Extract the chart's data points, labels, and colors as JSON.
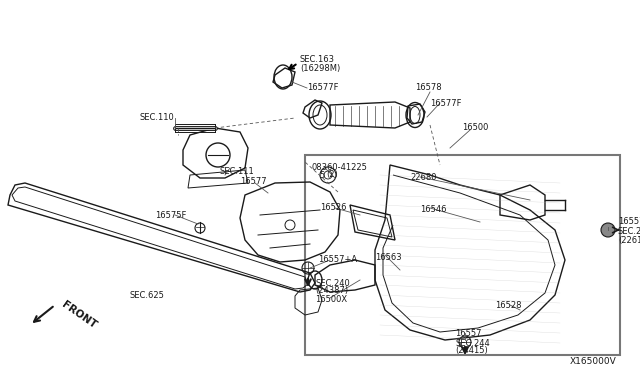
{
  "bg_color": "#ffffff",
  "line_color": "#1a1a1a",
  "label_color": "#1a1a1a",
  "diagram_id": "X165000V",
  "figsize": [
    6.4,
    3.72
  ],
  "dpi": 100,
  "xlim": [
    0,
    640
  ],
  "ylim": [
    0,
    372
  ]
}
